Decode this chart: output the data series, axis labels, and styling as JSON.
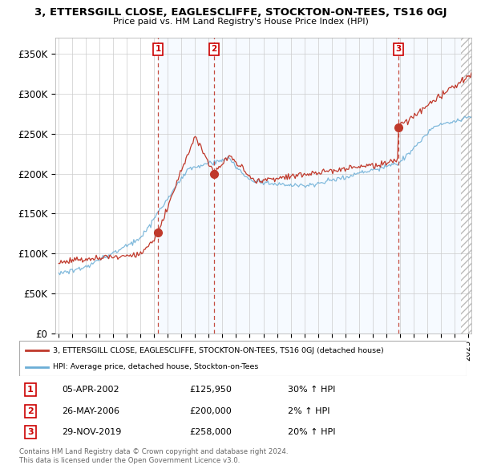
{
  "title": "3, ETTERSGILL CLOSE, EAGLESCLIFFE, STOCKTON-ON-TEES, TS16 0GJ",
  "subtitle": "Price paid vs. HM Land Registry's House Price Index (HPI)",
  "ylim": [
    0,
    370000
  ],
  "yticks": [
    0,
    50000,
    100000,
    150000,
    200000,
    250000,
    300000,
    350000
  ],
  "ytick_labels": [
    "£0",
    "£50K",
    "£100K",
    "£150K",
    "£200K",
    "£250K",
    "£300K",
    "£350K"
  ],
  "xlim_start": 1994.75,
  "xlim_end": 2025.25,
  "sale_dates": [
    2002.27,
    2006.4,
    2019.91
  ],
  "sale_prices": [
    125950,
    200000,
    258000
  ],
  "hpi_color": "#6baed6",
  "price_color": "#c0392b",
  "shade_color": "#ddeeff",
  "hatch_color": "#cccccc",
  "legend_label_price": "3, ETTERSGILL CLOSE, EAGLESCLIFFE, STOCKTON-ON-TEES, TS16 0GJ (detached house)",
  "legend_label_hpi": "HPI: Average price, detached house, Stockton-on-Tees",
  "sale_info": [
    {
      "num": "1",
      "date": "05-APR-2002",
      "price": "£125,950",
      "pct": "30% ↑ HPI"
    },
    {
      "num": "2",
      "date": "26-MAY-2006",
      "price": "£200,000",
      "pct": "2% ↑ HPI"
    },
    {
      "num": "3",
      "date": "29-NOV-2019",
      "price": "£258,000",
      "pct": "20% ↑ HPI"
    }
  ],
  "footnote1": "Contains HM Land Registry data © Crown copyright and database right 2024.",
  "footnote2": "This data is licensed under the Open Government Licence v3.0."
}
